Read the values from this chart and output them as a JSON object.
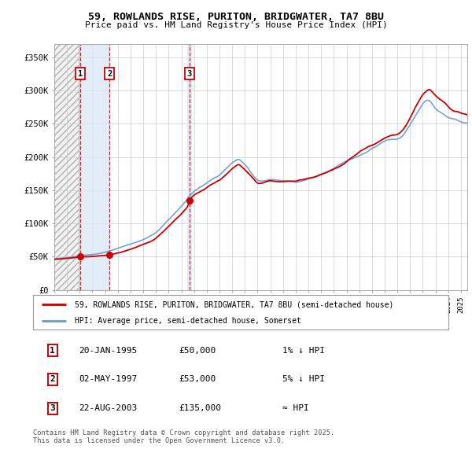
{
  "title1": "59, ROWLANDS RISE, PURITON, BRIDGWATER, TA7 8BU",
  "title2": "Price paid vs. HM Land Registry's House Price Index (HPI)",
  "legend1": "59, ROWLANDS RISE, PURITON, BRIDGWATER, TA7 8BU (semi-detached house)",
  "legend2": "HPI: Average price, semi-detached house, Somerset",
  "sale_prices": [
    50000,
    53000,
    135000
  ],
  "sale_labels": [
    "1",
    "2",
    "3"
  ],
  "footnote": "Contains HM Land Registry data © Crown copyright and database right 2025.\nThis data is licensed under the Open Government Licence v3.0.",
  "table_rows": [
    [
      "1",
      "20-JAN-1995",
      "£50,000",
      "1% ↓ HPI"
    ],
    [
      "2",
      "02-MAY-1997",
      "£53,000",
      "5% ↓ HPI"
    ],
    [
      "3",
      "22-AUG-2003",
      "£135,000",
      "≈ HPI"
    ]
  ],
  "hpi_color": "#6699cc",
  "property_color": "#cc0000",
  "sale_marker_color": "#cc0000",
  "ylim": [
    0,
    370000
  ],
  "yticks": [
    0,
    50000,
    100000,
    150000,
    200000,
    250000,
    300000,
    350000
  ],
  "ytick_labels": [
    "£0",
    "£50K",
    "£100K",
    "£150K",
    "£200K",
    "£250K",
    "£300K",
    "£350K"
  ],
  "xlim_start": 1993,
  "xlim_end": 2025.5
}
